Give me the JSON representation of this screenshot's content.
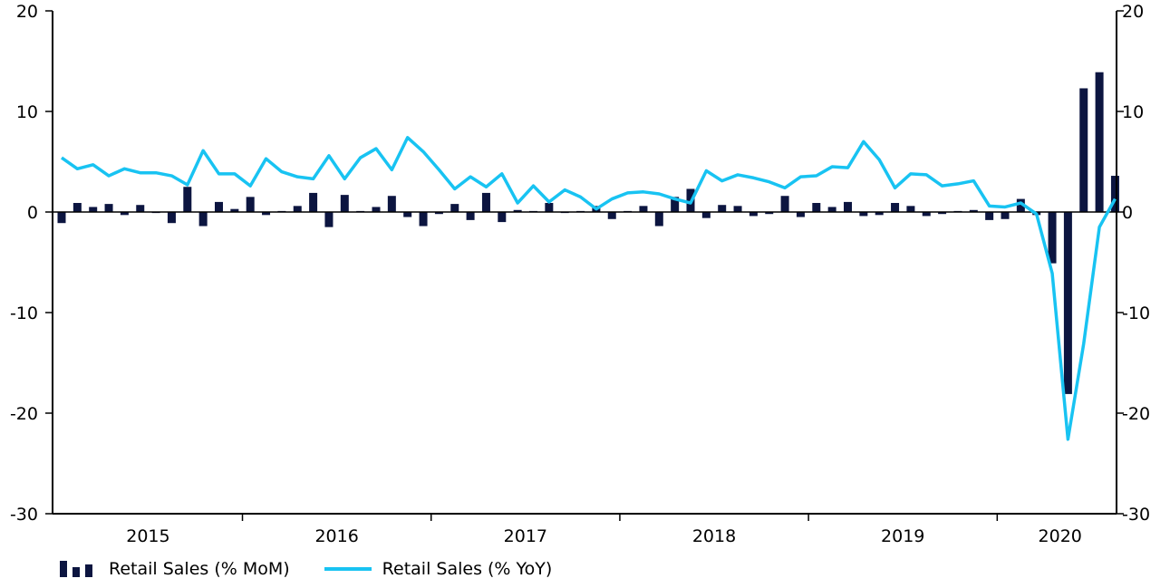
{
  "colors": {
    "mom": "#0c1540",
    "yoy": "#18c3f2",
    "axis": "#000000"
  },
  "chart_data": {
    "type": "bar+line",
    "title": "",
    "xlabel": "",
    "ylabel": "",
    "ylim": [
      -30,
      20
    ],
    "y_ticks": [
      "20",
      "10",
      "0",
      "-10",
      "-20",
      "-30"
    ],
    "y2_ticks": [
      "20",
      "10",
      "0",
      "-10",
      "-20",
      "-30"
    ],
    "grid": false,
    "legend_position": "bottom-left",
    "x_start": "2015-01",
    "year_labels": [
      "2015",
      "2016",
      "2017",
      "2018",
      "2019",
      "2020"
    ],
    "series": [
      {
        "name": "Retail Sales (% MoM)",
        "type": "bar",
        "values": [
          -1.1,
          0.9,
          0.5,
          0.8,
          -0.3,
          0.7,
          -0.1,
          -1.1,
          2.5,
          -1.4,
          1.0,
          0.3,
          1.5,
          -0.3,
          0.1,
          0.6,
          1.9,
          -1.5,
          1.7,
          0.1,
          0.5,
          1.6,
          -0.5,
          -1.4,
          -0.2,
          0.8,
          -0.8,
          1.9,
          -1.0,
          0.2,
          0.1,
          0.9,
          -0.1,
          0.1,
          0.6,
          -0.7,
          0.1,
          0.6,
          -1.4,
          1.5,
          2.3,
          -0.6,
          0.7,
          0.6,
          -0.4,
          -0.2,
          1.6,
          -0.5,
          0.9,
          0.5,
          1.0,
          -0.4,
          -0.3,
          0.9,
          0.6,
          -0.4,
          -0.2,
          0.1,
          0.2,
          -0.8,
          -0.7,
          1.3,
          -0.3,
          -5.1,
          -18.1,
          12.3,
          13.9,
          3.6
        ]
      },
      {
        "name": "Retail Sales (% YoY)",
        "type": "line",
        "values": [
          5.4,
          4.3,
          4.7,
          3.6,
          4.3,
          3.9,
          3.9,
          3.6,
          2.7,
          6.1,
          3.8,
          3.8,
          2.6,
          5.3,
          4.0,
          3.5,
          3.3,
          5.6,
          3.3,
          5.4,
          6.3,
          4.2,
          7.4,
          6.0,
          4.2,
          2.3,
          3.5,
          2.5,
          3.8,
          0.9,
          2.6,
          1.0,
          2.2,
          1.5,
          0.3,
          1.3,
          1.9,
          2.0,
          1.8,
          1.3,
          0.9,
          4.1,
          3.1,
          3.7,
          3.4,
          3.0,
          2.4,
          3.5,
          3.6,
          4.5,
          4.4,
          7.0,
          5.2,
          2.4,
          3.8,
          3.7,
          2.6,
          2.8,
          3.1,
          0.6,
          0.5,
          0.9,
          -0.2,
          -6.1,
          -22.6,
          -13.1,
          -1.5,
          1.3
        ]
      }
    ]
  }
}
